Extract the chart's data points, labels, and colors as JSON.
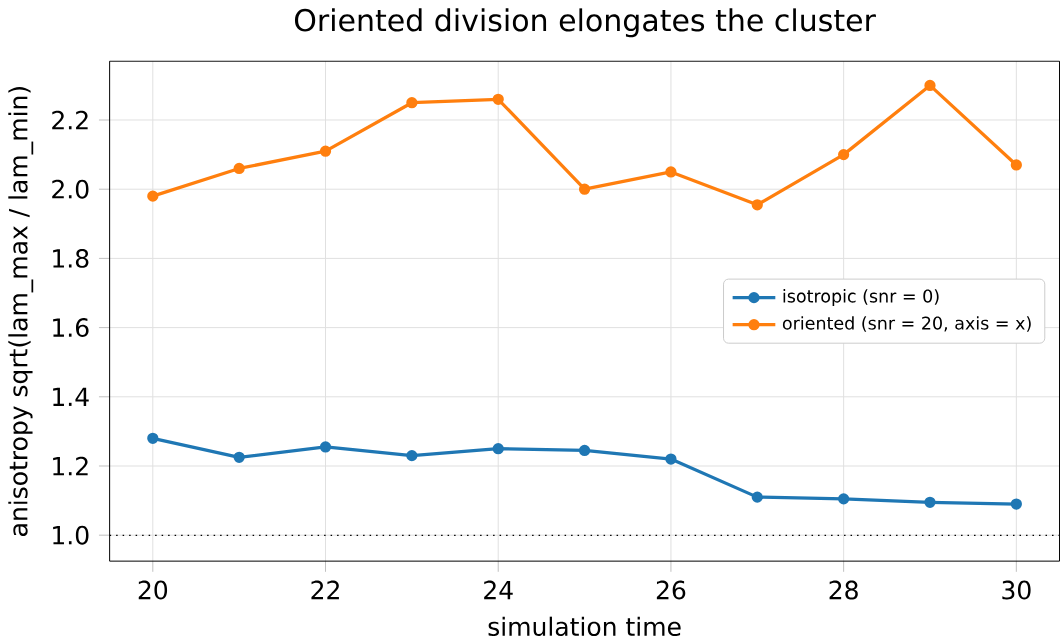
{
  "chart_data": {
    "type": "line",
    "title": "Oriented division elongates the cluster",
    "xlabel": "simulation time",
    "ylabel": "anisotropy  sqrt(lam_max / lam_min)",
    "x": [
      20,
      21,
      22,
      23,
      24,
      25,
      26,
      27,
      28,
      29,
      30
    ],
    "series": [
      {
        "name": "isotropic  (snr = 0)",
        "color": "#1f77b4",
        "values": [
          1.28,
          1.225,
          1.255,
          1.23,
          1.25,
          1.245,
          1.22,
          1.11,
          1.105,
          1.095,
          1.09
        ]
      },
      {
        "name": "oriented  (snr = 20, axis = x)",
        "color": "#ff7f0e",
        "values": [
          1.98,
          2.06,
          2.11,
          2.25,
          2.26,
          2.0,
          2.05,
          1.955,
          2.1,
          2.3,
          2.07
        ]
      }
    ],
    "xlim": [
      19.5,
      30.5
    ],
    "ylim": [
      0.925,
      2.37
    ],
    "xticks": [
      20,
      22,
      24,
      26,
      28,
      30
    ],
    "yticks": [
      {
        "value": 1.0,
        "label": "1.0"
      },
      1.2,
      1.4,
      1.6,
      1.8,
      {
        "value": 2.0,
        "label": "2.0"
      },
      2.2
    ],
    "ref_lines": [
      {
        "axis": "y",
        "value": 1.0,
        "color": "#000000",
        "line_style": "dotted"
      }
    ],
    "grid": true,
    "legend": "right",
    "marker": "circle",
    "line_style": "solid"
  }
}
